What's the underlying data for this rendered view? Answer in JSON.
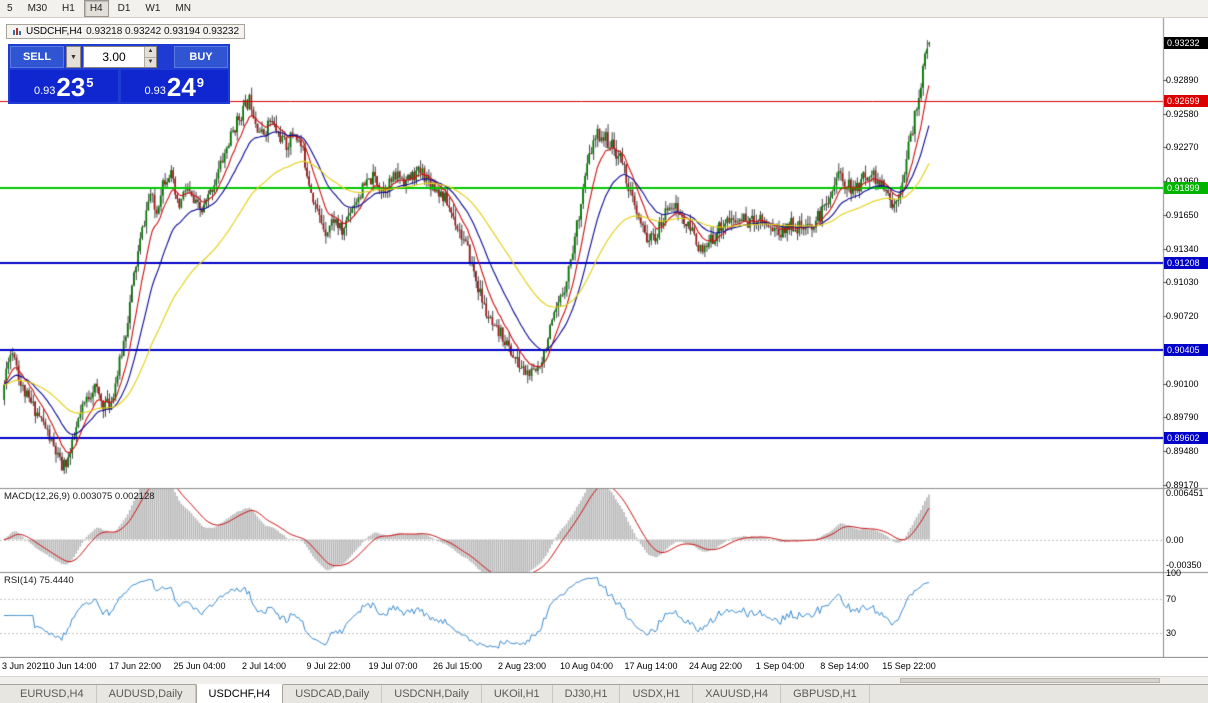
{
  "toolbar": {
    "periods": [
      "5",
      "M30",
      "H1",
      "H4",
      "D1",
      "W1",
      "MN"
    ],
    "active_period": "H4"
  },
  "chart_header": {
    "title": "USDCHF,H4",
    "ohlc": "0.93218 0.93242 0.93194 0.93232"
  },
  "trade_panel": {
    "sell_label": "SELL",
    "buy_label": "BUY",
    "volume": "3.00",
    "sell_price_prefix": "0.93",
    "sell_price_main": "23",
    "sell_price_pip": "5",
    "buy_price_prefix": "0.93",
    "buy_price_main": "24",
    "buy_price_pip": "9"
  },
  "tabs": {
    "items": [
      "EURUSD,H4",
      "AUDUSD,Daily",
      "USDCHF,H4",
      "USDCAD,Daily",
      "USDCNH,Daily",
      "UKOil,H1",
      "DJ30,H1",
      "USDX,H1",
      "XAUUSD,H4",
      "GBPUSD,H1"
    ],
    "active_index": 2
  },
  "chart_data": {
    "type": "candlestick",
    "symbol": "USDCHF",
    "timeframe": "H4",
    "current": {
      "open": 0.93218,
      "high": 0.93242,
      "low": 0.93194,
      "close": 0.93232
    },
    "candle_colors": {
      "up": "#007800",
      "down": "#a01818",
      "wick": "#1a1a1a"
    },
    "y_axis": {
      "min": 0.8914,
      "max": 0.9346,
      "ticks": [
        "0.92890",
        "0.92580",
        "0.92270",
        "0.91960",
        "0.91650",
        "0.91340",
        "0.91030",
        "0.90720",
        "0.90100",
        "0.89790",
        "0.89480",
        "0.89170"
      ]
    },
    "x_axis": {
      "labels": [
        "3 Jun 2021",
        "10 Jun 14:00",
        "17 Jun 22:00",
        "25 Jun 04:00",
        "2 Jul 14:00",
        "9 Jul 22:00",
        "19 Jul 07:00",
        "26 Jul 15:00",
        "2 Aug 23:00",
        "10 Aug 04:00",
        "17 Aug 14:00",
        "24 Aug 22:00",
        "1 Sep 04:00",
        "8 Sep 14:00",
        "15 Sep 22:00"
      ]
    },
    "price_markers": [
      {
        "label": "0.93232",
        "price": 0.93232,
        "color": "#000000",
        "type": "current-price"
      },
      {
        "label": "0.92699",
        "price": 0.92699,
        "color": "#dd0000",
        "type": "resistance-line"
      },
      {
        "label": "0.91899",
        "price": 0.91899,
        "color": "#00b400",
        "type": "support-line"
      },
      {
        "label": "0.91208",
        "price": 0.91208,
        "color": "#0000c8",
        "type": "support-line"
      },
      {
        "label": "0.90405",
        "price": 0.90405,
        "color": "#0000c8",
        "type": "support-line"
      },
      {
        "label": "0.89602",
        "price": 0.89602,
        "color": "#0000c8",
        "type": "support-line"
      }
    ],
    "horizontal_lines": [
      {
        "price": 0.92699,
        "color": "#dd0000",
        "width": 1
      },
      {
        "price": 0.91899,
        "color": "#00c800",
        "width": 2
      },
      {
        "price": 0.91208,
        "color": "#0000c8",
        "width": 2
      },
      {
        "price": 0.90405,
        "color": "#0000c8",
        "width": 2
      },
      {
        "price": 0.89602,
        "color": "#0000c8",
        "width": 2
      }
    ],
    "moving_averages": [
      {
        "period": 10,
        "color": "#cc1111"
      },
      {
        "period": 24,
        "color": "#0a0a96"
      },
      {
        "period": 60,
        "color": "#e3cf10"
      }
    ],
    "panes": {
      "macd": {
        "label": "MACD(12,26,9) 0.003075 0.002128",
        "histogram_color": "#b8b8b8",
        "signal_color": "#cc1111",
        "max": 0.007,
        "min": -0.0045,
        "scale": [
          {
            "label": "0.006451",
            "value": 0.006451
          },
          {
            "label": "0.00",
            "value": 0
          },
          {
            "label": "-0.00350",
            "value": -0.0035
          }
        ]
      },
      "rsi": {
        "label": "RSI(14) 75.4440",
        "line_color": "#3c8cd2",
        "levels": [
          70,
          30
        ],
        "scale": [
          {
            "label": "100",
            "value": 100
          },
          {
            "label": "70",
            "value": 70
          },
          {
            "label": "30",
            "value": 30
          }
        ]
      }
    },
    "price_path": [
      [
        4,
        0.8995
      ],
      [
        10,
        0.9035
      ],
      [
        16,
        0.904
      ],
      [
        22,
        0.901
      ],
      [
        30,
        0.8995
      ],
      [
        38,
        0.8985
      ],
      [
        46,
        0.8972
      ],
      [
        56,
        0.895
      ],
      [
        64,
        0.8932
      ],
      [
        72,
        0.8945
      ],
      [
        80,
        0.8975
      ],
      [
        88,
        0.8995
      ],
      [
        96,
        0.9008
      ],
      [
        104,
        0.8992
      ],
      [
        112,
        0.899
      ],
      [
        120,
        0.9022
      ],
      [
        128,
        0.906
      ],
      [
        136,
        0.911
      ],
      [
        144,
        0.915
      ],
      [
        152,
        0.9185
      ],
      [
        158,
        0.9165
      ],
      [
        164,
        0.9195
      ],
      [
        172,
        0.9205
      ],
      [
        180,
        0.917
      ],
      [
        188,
        0.919
      ],
      [
        196,
        0.9175
      ],
      [
        204,
        0.9168
      ],
      [
        212,
        0.9185
      ],
      [
        220,
        0.9205
      ],
      [
        228,
        0.9225
      ],
      [
        236,
        0.9245
      ],
      [
        244,
        0.926
      ],
      [
        252,
        0.9272
      ],
      [
        258,
        0.925
      ],
      [
        264,
        0.9238
      ],
      [
        272,
        0.9252
      ],
      [
        280,
        0.924
      ],
      [
        288,
        0.9228
      ],
      [
        296,
        0.9242
      ],
      [
        304,
        0.9225
      ],
      [
        312,
        0.9192
      ],
      [
        320,
        0.9165
      ],
      [
        328,
        0.915
      ],
      [
        336,
        0.9162
      ],
      [
        344,
        0.9148
      ],
      [
        352,
        0.917
      ],
      [
        360,
        0.9182
      ],
      [
        368,
        0.9193
      ],
      [
        376,
        0.92
      ],
      [
        384,
        0.9188
      ],
      [
        392,
        0.9195
      ],
      [
        400,
        0.9202
      ],
      [
        408,
        0.9196
      ],
      [
        416,
        0.9202
      ],
      [
        424,
        0.9205
      ],
      [
        432,
        0.9195
      ],
      [
        440,
        0.9188
      ],
      [
        448,
        0.9178
      ],
      [
        456,
        0.9162
      ],
      [
        464,
        0.9145
      ],
      [
        472,
        0.9125
      ],
      [
        480,
        0.9098
      ],
      [
        488,
        0.9075
      ],
      [
        496,
        0.9058
      ],
      [
        504,
        0.9055
      ],
      [
        512,
        0.904
      ],
      [
        520,
        0.9028
      ],
      [
        528,
        0.902
      ],
      [
        536,
        0.9018
      ],
      [
        544,
        0.9035
      ],
      [
        552,
        0.9058
      ],
      [
        560,
        0.908
      ],
      [
        568,
        0.9105
      ],
      [
        576,
        0.914
      ],
      [
        584,
        0.9185
      ],
      [
        592,
        0.9222
      ],
      [
        600,
        0.924
      ],
      [
        608,
        0.9235
      ],
      [
        616,
        0.9225
      ],
      [
        624,
        0.9215
      ],
      [
        632,
        0.9185
      ],
      [
        640,
        0.916
      ],
      [
        648,
        0.9145
      ],
      [
        656,
        0.9142
      ],
      [
        664,
        0.9158
      ],
      [
        672,
        0.9178
      ],
      [
        680,
        0.9168
      ],
      [
        688,
        0.9155
      ],
      [
        696,
        0.9148
      ],
      [
        704,
        0.9128
      ],
      [
        712,
        0.914
      ],
      [
        720,
        0.9152
      ],
      [
        728,
        0.916
      ],
      [
        736,
        0.9158
      ],
      [
        744,
        0.9162
      ],
      [
        752,
        0.9158
      ],
      [
        760,
        0.9164
      ],
      [
        768,
        0.9158
      ],
      [
        776,
        0.9152
      ],
      [
        784,
        0.9148
      ],
      [
        792,
        0.9158
      ],
      [
        800,
        0.9154
      ],
      [
        808,
        0.915
      ],
      [
        816,
        0.9158
      ],
      [
        824,
        0.9168
      ],
      [
        832,
        0.9185
      ],
      [
        840,
        0.9202
      ],
      [
        848,
        0.9195
      ],
      [
        856,
        0.9185
      ],
      [
        864,
        0.9198
      ],
      [
        872,
        0.9205
      ],
      [
        880,
        0.9195
      ],
      [
        888,
        0.9185
      ],
      [
        896,
        0.9172
      ],
      [
        904,
        0.9198
      ],
      [
        910,
        0.9225
      ],
      [
        916,
        0.9252
      ],
      [
        922,
        0.9282
      ],
      [
        926,
        0.9305
      ],
      [
        930,
        0.9322
      ]
    ]
  }
}
